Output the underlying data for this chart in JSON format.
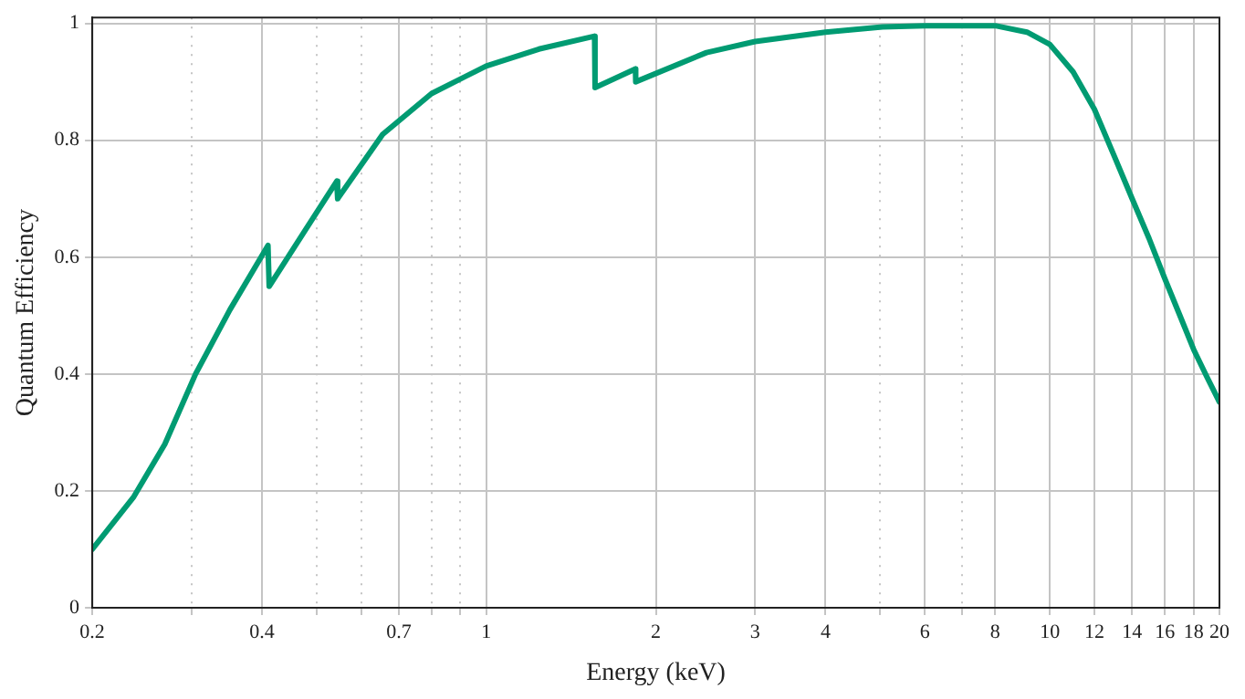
{
  "chart_data": {
    "type": "line",
    "xlabel": "Energy (keV)",
    "ylabel": "Quantum Efficiency",
    "log": "x",
    "grid": true,
    "legend": false,
    "marker": "none",
    "line_style": "solid",
    "xlim": [
      0.2,
      20
    ],
    "ylim": [
      0,
      1.01
    ],
    "xticks": [
      0.2,
      {
        "value": 0.3,
        "label": null
      },
      0.4,
      {
        "value": 0.5,
        "label": null
      },
      {
        "value": 0.6,
        "label": null
      },
      0.7,
      {
        "value": 0.8,
        "label": null
      },
      {
        "value": 0.9,
        "label": null
      },
      1,
      2,
      3,
      4,
      {
        "value": 5,
        "label": null
      },
      6,
      {
        "value": 7,
        "label": null
      },
      8,
      10,
      12,
      14,
      16,
      18,
      20
    ],
    "yticks": [
      0,
      0.2,
      0.4,
      0.6,
      0.8,
      1
    ],
    "series": [
      {
        "color": "#009b72",
        "x": [
          0.2,
          0.237,
          0.269,
          0.305,
          0.351,
          0.41,
          0.412,
          0.543,
          0.545,
          0.655,
          0.8,
          1.0,
          1.24,
          1.557,
          1.56,
          1.84,
          1.842,
          2.46,
          3,
          4,
          5.05,
          6,
          8,
          9.11,
          10,
          11,
          12,
          13,
          14,
          15,
          16,
          17.1,
          18,
          19,
          20
        ],
        "values": [
          0.1,
          0.19,
          0.28,
          0.4,
          0.51,
          0.62,
          0.55,
          0.73,
          0.7,
          0.81,
          0.88,
          0.927,
          0.956,
          0.978,
          0.89,
          0.922,
          0.9,
          0.95,
          0.969,
          0.985,
          0.994,
          0.996,
          0.996,
          0.985,
          0.964,
          0.917,
          0.853,
          0.774,
          0.7,
          0.632,
          0.563,
          0.495,
          0.442,
          0.395,
          0.352
        ]
      }
    ]
  }
}
